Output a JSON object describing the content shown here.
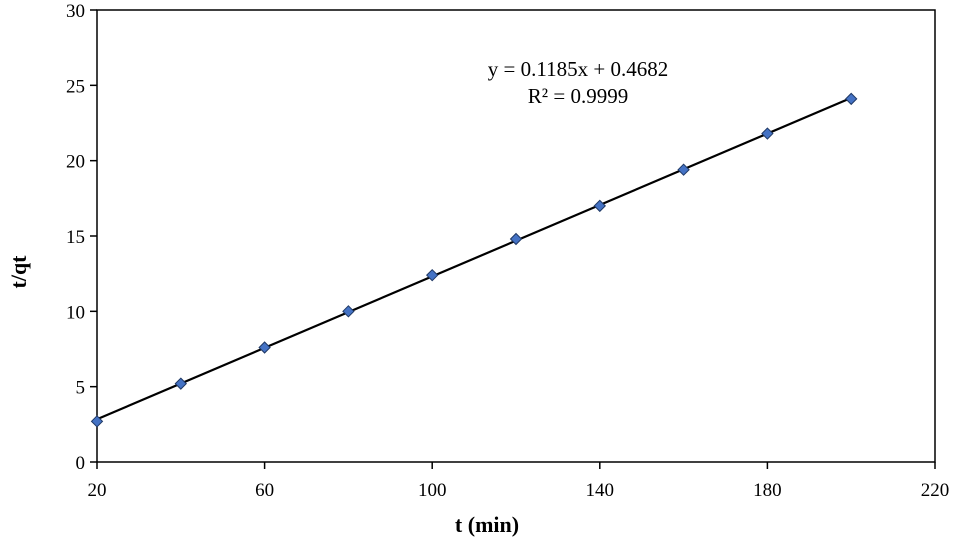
{
  "chart_data": {
    "type": "scatter",
    "title": "",
    "xlabel": "t (min)",
    "ylabel": "t/qt",
    "xlim": [
      20,
      220
    ],
    "ylim": [
      0,
      30
    ],
    "xticks": [
      "20",
      "60",
      "100",
      "140",
      "180",
      "220"
    ],
    "yticks": [
      "0",
      "5",
      "10",
      "15",
      "20",
      "25",
      "30"
    ],
    "grid": false,
    "legend": "none",
    "series": [
      {
        "x": [
          20,
          40,
          60,
          80,
          100,
          120,
          140,
          160,
          180,
          200
        ],
        "y": [
          2.7,
          5.2,
          7.6,
          10.0,
          12.4,
          14.8,
          17.0,
          19.4,
          21.8,
          24.1
        ],
        "marker": "diamond",
        "color": "#4472C4"
      }
    ],
    "trendline": {
      "slope": 0.1185,
      "intercept": 0.4682,
      "x_range": [
        20,
        200
      ],
      "color": "#000000"
    },
    "annotations": [
      "y = 0.1185x + 0.4682",
      "R² = 0.9999"
    ]
  }
}
